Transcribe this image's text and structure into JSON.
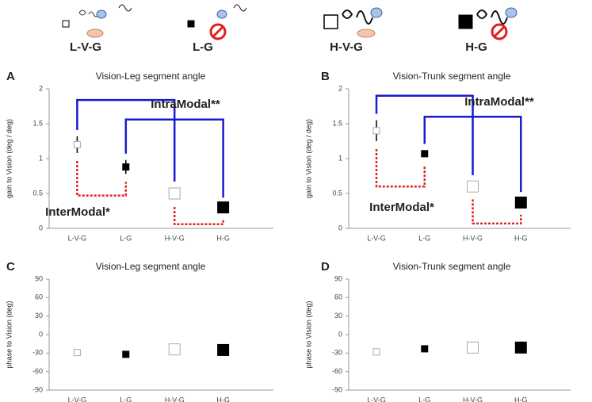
{
  "header": {
    "labels": [
      "L-V-G",
      "L-G",
      "H-V-G",
      "H-G"
    ]
  },
  "chart_data": [
    {
      "type": "errorbar",
      "panel": "A",
      "title": "Vision-Leg segment angle",
      "y_label": "gain to Vision (deg / deg)",
      "categories": [
        "L-V-G",
        "L-G",
        "H-V-G",
        "H-G"
      ],
      "values": [
        1.2,
        0.88,
        0.5,
        0.3
      ],
      "errors": [
        0.12,
        0.1,
        0.08,
        0.05
      ],
      "marker_colors": [
        "#ffffff",
        "#000000",
        "#ffffff",
        "#000000"
      ],
      "ylim": [
        0,
        2
      ],
      "yticks": [
        0,
        0.5,
        1,
        1.5,
        2
      ],
      "annotations": [
        {
          "text": "IntraModal**",
          "color": "#1a1ad0"
        },
        {
          "text": "InterModal*",
          "color": "#e02424"
        }
      ]
    },
    {
      "type": "errorbar",
      "panel": "B",
      "title": "Vision-Trunk segment angle",
      "y_label": "gain to Vision (deg / deg)",
      "categories": [
        "L-V-G",
        "L-G",
        "H-V-G",
        "H-G"
      ],
      "values": [
        1.4,
        1.07,
        0.6,
        0.37
      ],
      "errors": [
        0.15,
        0.05,
        0.07,
        0.06
      ],
      "marker_colors": [
        "#ffffff",
        "#000000",
        "#ffffff",
        "#000000"
      ],
      "ylim": [
        0,
        2
      ],
      "yticks": [
        0,
        0.5,
        1,
        1.5,
        2
      ],
      "annotations": [
        {
          "text": "IntraModal**",
          "color": "#1a1ad0"
        },
        {
          "text": "InterModal*",
          "color": "#e02424"
        }
      ]
    },
    {
      "type": "errorbar",
      "panel": "C",
      "title": "Vision-Leg segment angle",
      "y_label": "phase to Vision (deg)",
      "categories": [
        "L-V-G",
        "L-G",
        "H-V-G",
        "H-G"
      ],
      "values": [
        -29,
        -32,
        -24,
        -25
      ],
      "errors": [
        3,
        2,
        3,
        3
      ],
      "marker_colors": [
        "#ffffff",
        "#000000",
        "#ffffff",
        "#000000"
      ],
      "ylim": [
        -90,
        90
      ],
      "yticks": [
        -90,
        -60,
        -30,
        0,
        30,
        60,
        90
      ]
    },
    {
      "type": "errorbar",
      "panel": "D",
      "title": "Vision-Trunk segment angle",
      "y_label": "phase to Vision (deg)",
      "categories": [
        "L-V-G",
        "L-G",
        "H-V-G",
        "H-G"
      ],
      "values": [
        -28,
        -23,
        -21,
        -21
      ],
      "errors": [
        5,
        3,
        2,
        3
      ],
      "marker_colors": [
        "#ffffff",
        "#000000",
        "#ffffff",
        "#000000"
      ],
      "ylim": [
        -90,
        90
      ],
      "yticks": [
        -90,
        -60,
        -30,
        0,
        30,
        60,
        90
      ]
    }
  ]
}
